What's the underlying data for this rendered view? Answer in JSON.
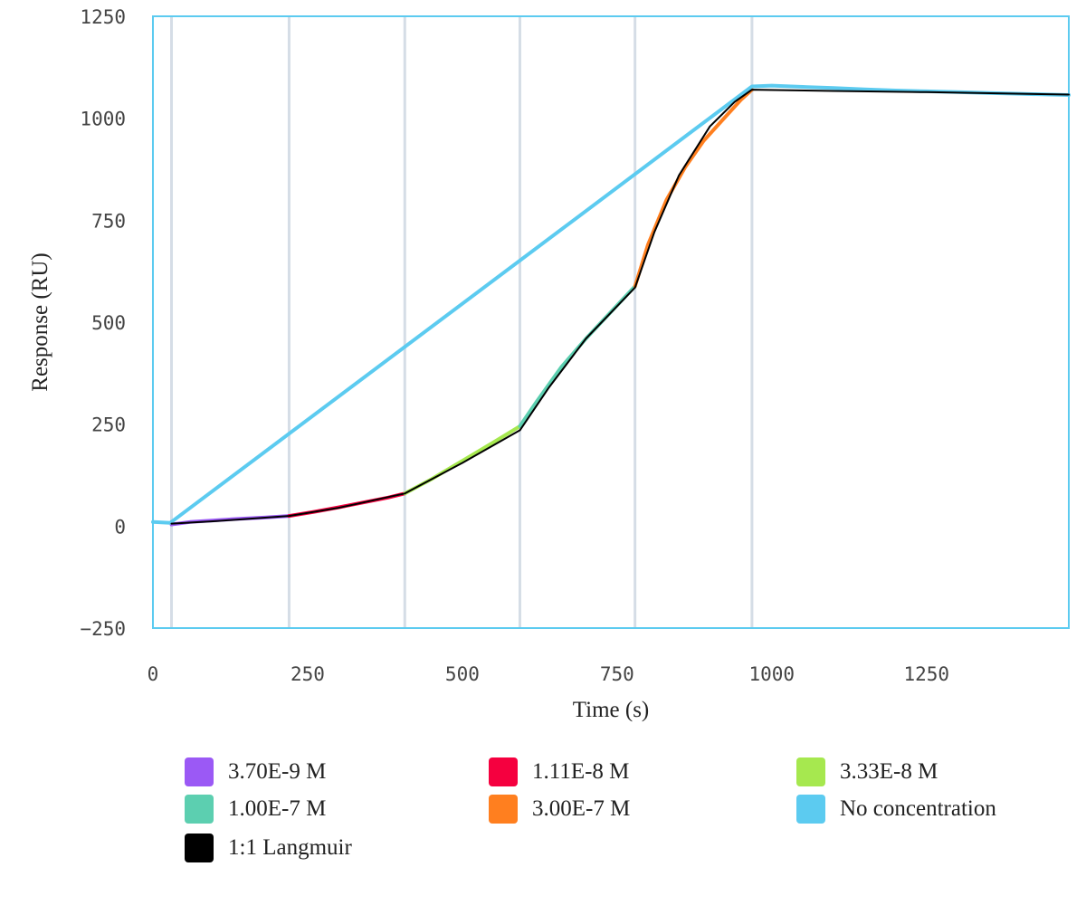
{
  "chart_data": {
    "type": "line",
    "title": "",
    "xlabel": "Time (s)",
    "ylabel": "Response (RU)",
    "xlim": [
      0,
      1480
    ],
    "ylim": [
      -250,
      1250
    ],
    "xticks": [
      0,
      250,
      500,
      750,
      1000,
      1250
    ],
    "yticks": [
      -250,
      0,
      250,
      500,
      750,
      1000,
      1250
    ],
    "grid": false,
    "legend_position": "bottom",
    "injection_markers": [
      30,
      220,
      407,
      593,
      779,
      968
    ],
    "series": [
      {
        "name": "3.70E-9 M",
        "color": "#9b59f5",
        "x": [
          30,
          60,
          100,
          140,
          180,
          220
        ],
        "y": [
          4,
          10,
          14,
          18,
          21,
          25
        ]
      },
      {
        "name": "1.11E-8 M",
        "color": "#f5003f",
        "x": [
          220,
          260,
          300,
          340,
          380,
          407
        ],
        "y": [
          25,
          35,
          46,
          58,
          70,
          80
        ]
      },
      {
        "name": "3.33E-8 M",
        "color": "#a6e84f",
        "x": [
          407,
          450,
          500,
          550,
          593
        ],
        "y": [
          80,
          115,
          160,
          205,
          245
        ]
      },
      {
        "name": "1.00E-7 M",
        "color": "#5ccfb0",
        "x": [
          593,
          620,
          660,
          700,
          740,
          779
        ],
        "y": [
          245,
          305,
          390,
          460,
          525,
          588
        ]
      },
      {
        "name": "3.00E-7 M",
        "color": "#ff7f1f",
        "x": [
          779,
          800,
          830,
          860,
          890,
          920,
          950,
          968
        ],
        "y": [
          588,
          690,
          800,
          880,
          945,
          995,
          1045,
          1070
        ]
      },
      {
        "name": "No concentration",
        "color": "#5ccbf0",
        "x": [
          0,
          28,
          968,
          1000,
          1050,
          1100,
          1150,
          1200,
          1250,
          1300,
          1350,
          1400,
          1450,
          1480
        ],
        "y": [
          10,
          8,
          1078,
          1080,
          1077,
          1074,
          1071,
          1068,
          1066,
          1064,
          1062,
          1060,
          1058,
          1057
        ]
      },
      {
        "name": "1:1 Langmuir",
        "color": "#000000",
        "x": [
          30,
          100,
          220,
          300,
          407,
          500,
          593,
          640,
          700,
          779,
          810,
          850,
          900,
          940,
          968,
          1100,
          1250,
          1480
        ],
        "y": [
          6,
          12,
          25,
          45,
          80,
          155,
          235,
          340,
          460,
          585,
          720,
          860,
          980,
          1040,
          1070,
          1067,
          1064,
          1058
        ]
      }
    ]
  }
}
